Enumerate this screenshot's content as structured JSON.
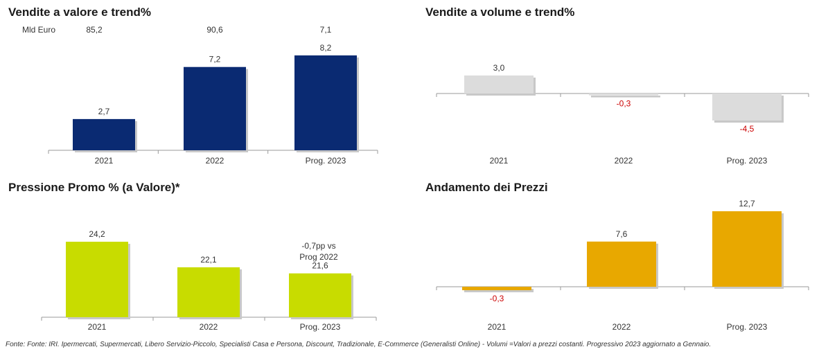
{
  "titles": {
    "valore": "Vendite a valore e trend%",
    "volume": "Vendite a volume e trend%",
    "promo": "Pressione Promo % (a Valore)*",
    "prezzi": "Andamento dei Prezzi"
  },
  "valore_top_row": {
    "unit_label": "Mld Euro",
    "values": [
      "85,2",
      "90,6",
      "7,1"
    ]
  },
  "annotation_promo": [
    "-0,7pp vs",
    "Prog 2022"
  ],
  "source_text": "Fonte: Fonte: IRI. Ipermercati, Supermercati, Libero Servizio-Piccolo, Specialisti Casa e Persona, Discount, Tradizionale, E-Commerce (Generalisti Online) -  Volumi =Valori a prezzi costanti. Progressivo 2023 aggiornato a Gennaio.",
  "colors": {
    "valore": "#0a2a72",
    "volume": "#dcdcdc",
    "promo": "#c8dc00",
    "prezzi": "#e8a800",
    "negative_label": "#cc0000",
    "axis": "#999999",
    "shadow": "#c8c8c8"
  },
  "chart_data": [
    {
      "id": "valore",
      "type": "bar",
      "title": "Vendite a valore e trend%",
      "categories": [
        "2021",
        "2022",
        "Prog. 2023"
      ],
      "values": [
        2.7,
        7.2,
        8.2
      ],
      "labels": [
        "2,7",
        "7,2",
        "8,2"
      ],
      "ylim": [
        0,
        8.2
      ]
    },
    {
      "id": "volume",
      "type": "bar",
      "title": "Vendite a volume e trend%",
      "categories": [
        "2021",
        "2022",
        "Prog. 2023"
      ],
      "values": [
        3.0,
        -0.3,
        -4.5
      ],
      "labels": [
        "3,0",
        "-0,3",
        "-4,5"
      ],
      "ylim": [
        -4.5,
        3.0
      ]
    },
    {
      "id": "promo",
      "type": "bar",
      "title": "Pressione Promo % (a Valore)*",
      "categories": [
        "2021",
        "2022",
        "Prog. 2023"
      ],
      "values": [
        24.2,
        22.1,
        21.6
      ],
      "labels": [
        "24,2",
        "22,1",
        "21,6"
      ],
      "ylim": [
        18.0,
        24.2
      ]
    },
    {
      "id": "prezzi",
      "type": "bar",
      "title": "Andamento dei Prezzi",
      "categories": [
        "2021",
        "2022",
        "Prog. 2023"
      ],
      "values": [
        -0.3,
        7.6,
        12.7
      ],
      "labels": [
        "-0,3",
        "7,6",
        "12,7"
      ],
      "ylim": [
        -0.3,
        12.7
      ]
    }
  ]
}
